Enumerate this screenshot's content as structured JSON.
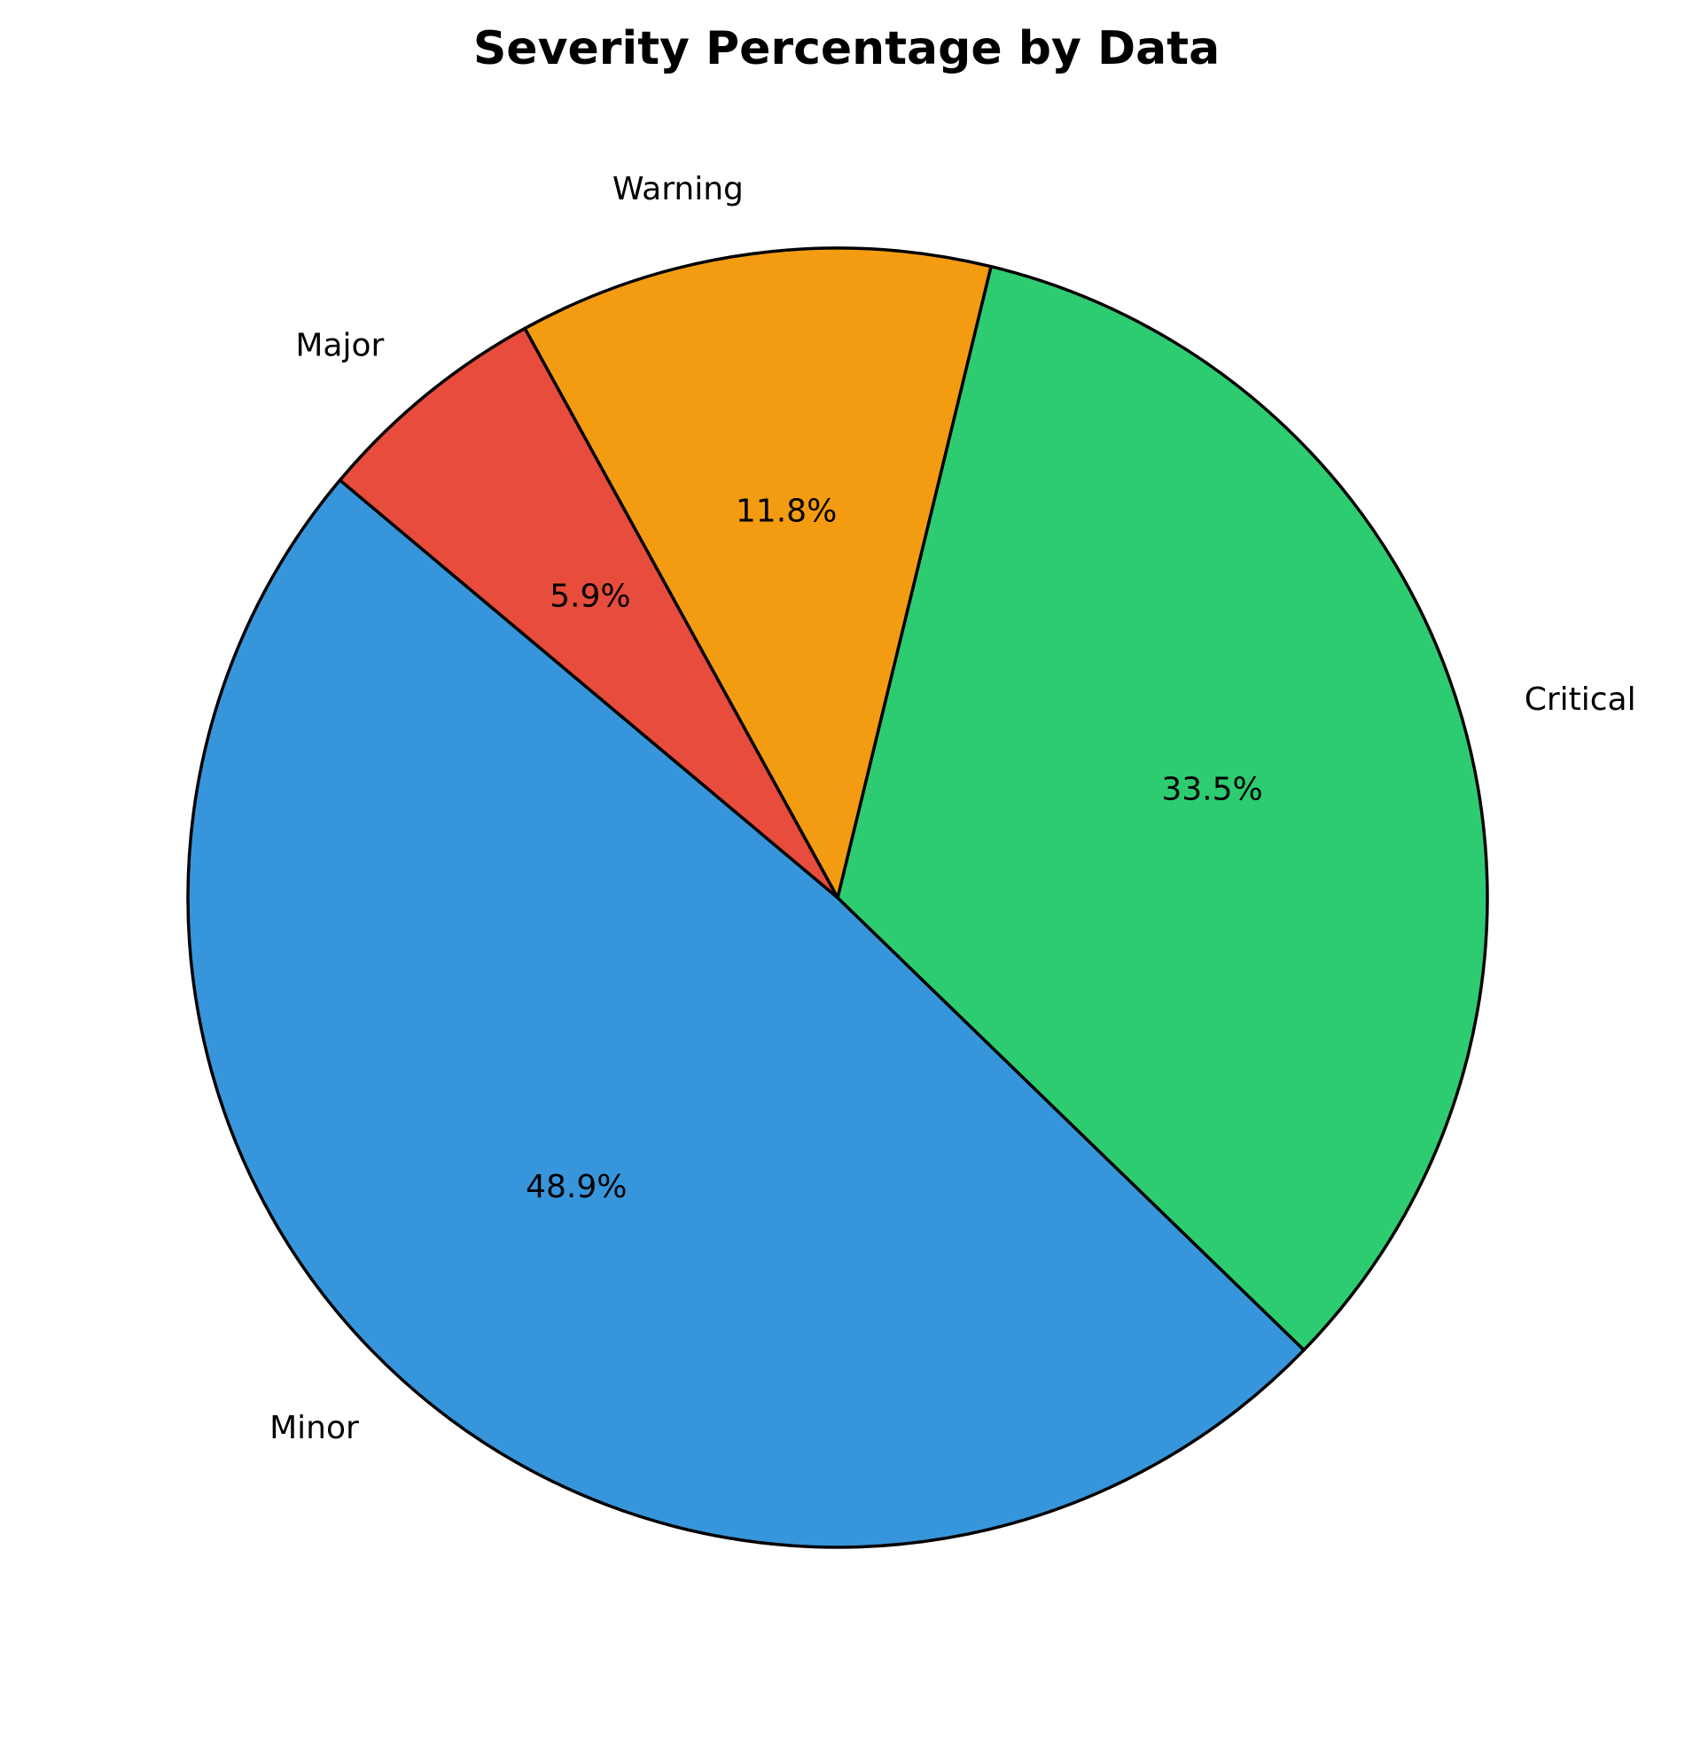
{
  "chart_data": {
    "type": "pie",
    "title": "Severity Percentage by Data",
    "slices": [
      {
        "label": "Minor",
        "value": 48.9,
        "pct_label": "48.9%",
        "color": "#3796db"
      },
      {
        "label": "Critical",
        "value": 33.5,
        "pct_label": "33.5%",
        "color": "#2ecc71"
      },
      {
        "label": "Warning",
        "value": 11.8,
        "pct_label": "11.8%",
        "color": "#f39c12"
      },
      {
        "label": "Major",
        "value": 5.9,
        "pct_label": "5.9%",
        "color": "#e74c3c"
      }
    ],
    "start_angle_deg": 140,
    "direction": "counterclockwise",
    "edge_color": "#000000",
    "legend": "none"
  }
}
